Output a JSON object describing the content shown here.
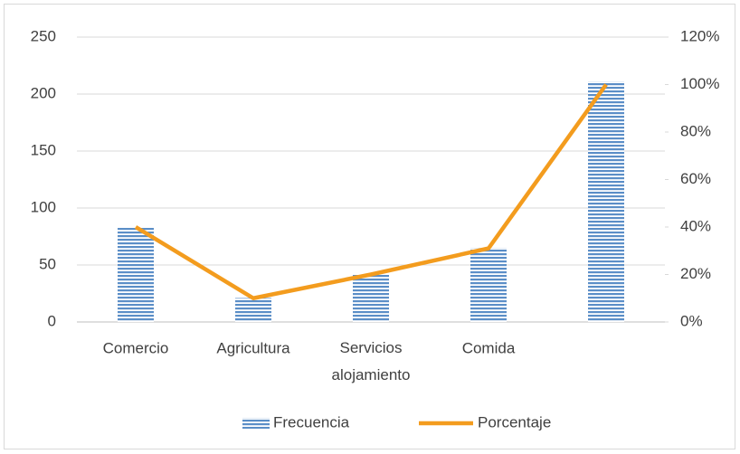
{
  "chart_data": {
    "type": "bar",
    "categories": [
      "Comercio",
      "Agricultura",
      "Servicios alojamiento",
      "Comida",
      null
    ],
    "series": [
      {
        "name": "Frecuencia",
        "type": "bar",
        "color": "#5b8ec7",
        "values": [
          83,
          21,
          42,
          65,
          211
        ]
      },
      {
        "name": "Porcentaje",
        "type": "line",
        "axis": "y2",
        "color": "#f39c1e",
        "values": [
          40,
          10,
          20,
          31,
          100
        ]
      }
    ],
    "ylim": [
      0,
      250
    ],
    "yticks": [
      0,
      50,
      100,
      150,
      200,
      250
    ],
    "y2lim": [
      0,
      120
    ],
    "y2ticks": [
      {
        "value": 0,
        "label": "0%"
      },
      {
        "value": 20,
        "label": "20%"
      },
      {
        "value": 40,
        "label": "40%"
      },
      {
        "value": 60,
        "label": "60%"
      },
      {
        "value": 80,
        "label": "80%"
      },
      {
        "value": 100,
        "label": "100%"
      },
      {
        "value": 120,
        "label": "120%"
      }
    ],
    "grid": true,
    "legend": "bottom"
  }
}
